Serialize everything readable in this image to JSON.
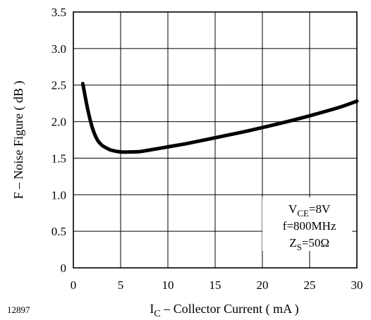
{
  "figure_code": "12897",
  "chart_data": {
    "type": "line",
    "title": "",
    "xlabel": {
      "main": "I",
      "sub": "C",
      "rest": " – Collector Current ( mA )"
    },
    "ylabel": "F  –  Noise Figure  ( dB )",
    "xlim": [
      0,
      30
    ],
    "ylim": [
      0,
      3.5
    ],
    "xticks": [
      "0",
      "5",
      "10",
      "15",
      "20",
      "25",
      "30"
    ],
    "yticks": [
      "0",
      "0.5",
      "1.0",
      "1.5",
      "2.0",
      "2.5",
      "3.0",
      "3.5"
    ],
    "grid": true,
    "legend": "none",
    "line_color": "#000000",
    "conditions": [
      {
        "main": "V",
        "sub": "CE",
        "rest": "=8V"
      },
      {
        "main": "f=800MHz",
        "sub": "",
        "rest": ""
      },
      {
        "main": "Z",
        "sub": "S",
        "rest": "=50Ω"
      }
    ],
    "series": [
      {
        "x": [
          1.0,
          1.5,
          2.0,
          2.5,
          3.0,
          3.5,
          4.0,
          5.0,
          6.0,
          7.0,
          8.0,
          10.0,
          12.0,
          15.0,
          18.0,
          20.0,
          22.0,
          25.0,
          28.0,
          30.0
        ],
        "values": [
          2.52,
          2.18,
          1.92,
          1.76,
          1.68,
          1.64,
          1.61,
          1.585,
          1.585,
          1.59,
          1.61,
          1.655,
          1.7,
          1.78,
          1.86,
          1.92,
          1.98,
          2.08,
          2.19,
          2.28
        ]
      }
    ]
  }
}
